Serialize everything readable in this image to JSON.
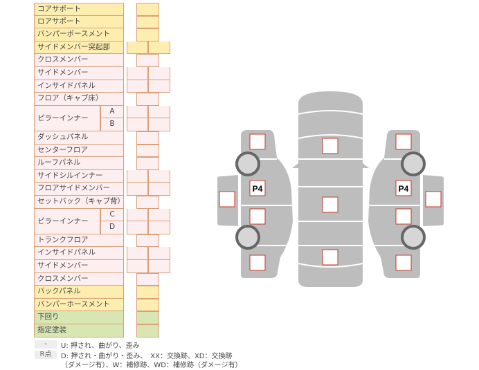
{
  "table": {
    "rows": [
      {
        "label": "コアサポート",
        "color": "yellow",
        "cells": "single"
      },
      {
        "label": "ロアサポート",
        "color": "yellow",
        "cells": "single"
      },
      {
        "label": "バンパーボースメント",
        "color": "yellow",
        "cells": "single"
      },
      {
        "label": "サイドメンバー突起部",
        "color": "yellow",
        "cells": "double"
      },
      {
        "label": "クロスメンバー",
        "color": "pink",
        "cells": "single"
      },
      {
        "label": "サイドメンバー",
        "color": "pink",
        "cells": "double"
      },
      {
        "label": "インサイドパネル",
        "color": "pink",
        "cells": "double"
      },
      {
        "label": "フロア（キャブ床）",
        "color": "pink",
        "cells": "single"
      },
      {
        "label": "ピラーインナー",
        "sub": "A",
        "color": "pink",
        "cells": "double"
      },
      {
        "label": "",
        "sub": "B",
        "color": "pink",
        "cells": "double"
      },
      {
        "label": "ダッシュパネル",
        "color": "pink",
        "cells": "single"
      },
      {
        "label": "センターフロア",
        "color": "pink",
        "cells": "single"
      },
      {
        "label": "ルーフパネル",
        "color": "pink",
        "cells": "single"
      },
      {
        "label": "サイドシルインナー",
        "color": "pink",
        "cells": "double"
      },
      {
        "label": "フロアサイドメンバー",
        "color": "pink",
        "cells": "double"
      },
      {
        "label": "セットバック（キャブ背）",
        "color": "pink",
        "cells": "single"
      },
      {
        "label": "ピラーインナー",
        "sub": "C",
        "color": "pink",
        "cells": "double"
      },
      {
        "label": "",
        "sub": "D",
        "color": "pink",
        "cells": "double"
      },
      {
        "label": "トランクフロア",
        "color": "pink",
        "cells": "single"
      },
      {
        "label": "インサイドパネル",
        "color": "pink",
        "cells": "double"
      },
      {
        "label": "サイドメンバー",
        "color": "pink",
        "cells": "double"
      },
      {
        "label": "クロスメンバー",
        "color": "pink",
        "cells": "single"
      },
      {
        "label": "バックパネル",
        "color": "yellow",
        "cells": "single"
      },
      {
        "label": "バンパーホースメント",
        "color": "yellow",
        "cells": "single"
      },
      {
        "label": "下回り",
        "color": "green",
        "cells": "single"
      },
      {
        "label": "指定塗装",
        "color": "green",
        "cells": "single"
      }
    ]
  },
  "legend": {
    "key1": "-",
    "text1": "U: 押され、曲がり、歪み",
    "key2": "R点",
    "text2a": "D: 押され・曲がり・歪み、　XX：交換跡、XD：交換跡",
    "text2b": "（ダメージ有）、W：補修跡、WD：補修跡（ダメージ有）"
  },
  "diagram": {
    "left_marker": "P4",
    "right_marker": "P4"
  },
  "colors": {
    "yellow": "#fdeeb0",
    "pink": "#fdeef0",
    "green": "#d7e6b3",
    "border": "#d9a07a",
    "car": "#bdbdbd",
    "square_border": "#c0392b"
  }
}
